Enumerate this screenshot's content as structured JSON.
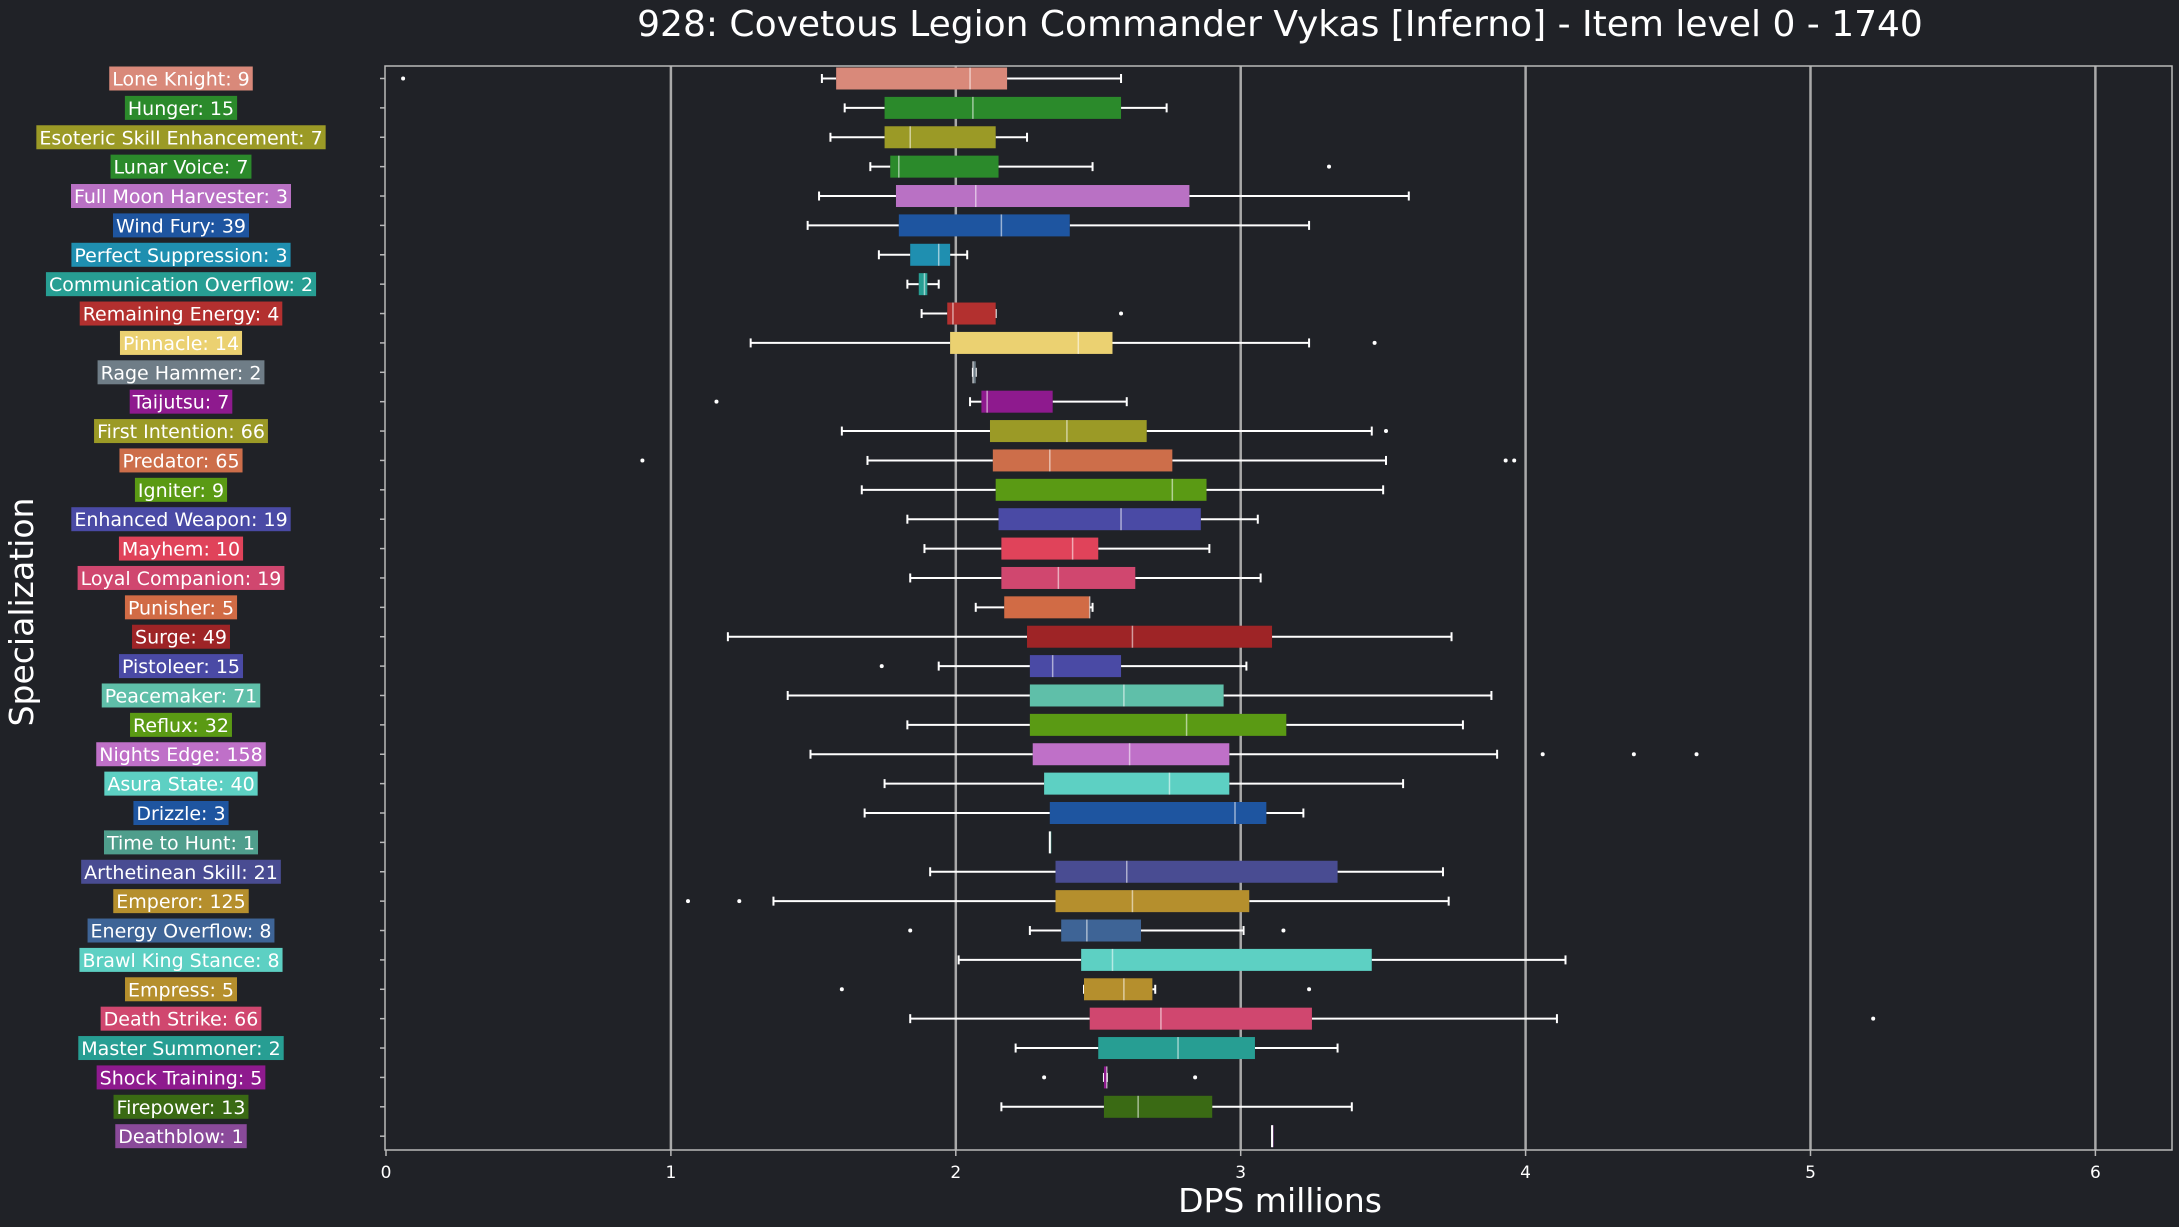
{
  "chart_data": {
    "type": "box",
    "title": "928: Covetous Legion Commander Vykas [Inferno] - Item level 0 - 1740",
    "xlabel": "DPS millions",
    "ylabel": "Specialization",
    "xlim": [
      0,
      6.3
    ],
    "xticks": [
      0,
      1,
      2,
      3,
      4,
      5,
      6
    ],
    "grid": true,
    "orientation": "horizontal",
    "series": [
      {
        "label": "Lone Knight: 9",
        "color": "#d9897a",
        "whisker_low": 1.53,
        "q1": 1.58,
        "median": 2.05,
        "q3": 2.18,
        "whisker_high": 2.58,
        "outliers": [
          0.06
        ]
      },
      {
        "label": "Hunger: 15",
        "color": "#2b8a2b",
        "whisker_low": 1.61,
        "q1": 1.75,
        "median": 2.06,
        "q3": 2.58,
        "whisker_high": 2.74,
        "outliers": []
      },
      {
        "label": "Esoteric Skill Enhancement: 7",
        "color": "#9b9a26",
        "whisker_low": 1.56,
        "q1": 1.75,
        "median": 1.84,
        "q3": 2.14,
        "whisker_high": 2.25,
        "outliers": []
      },
      {
        "label": "Lunar Voice: 7",
        "color": "#2b8a2b",
        "whisker_low": 1.7,
        "q1": 1.77,
        "median": 1.8,
        "q3": 2.15,
        "whisker_high": 2.48,
        "outliers": [
          3.31
        ]
      },
      {
        "label": "Full Moon Harvester: 3",
        "color": "#b971c4",
        "whisker_low": 1.52,
        "q1": 1.79,
        "median": 2.07,
        "q3": 2.82,
        "whisker_high": 3.59,
        "outliers": []
      },
      {
        "label": "Wind Fury: 39",
        "color": "#1e55a0",
        "whisker_low": 1.48,
        "q1": 1.8,
        "median": 2.16,
        "q3": 2.4,
        "whisker_high": 3.24,
        "outliers": []
      },
      {
        "label": "Perfect Suppression: 3",
        "color": "#1f8fb0",
        "whisker_low": 1.73,
        "q1": 1.84,
        "median": 1.94,
        "q3": 1.98,
        "whisker_high": 2.04,
        "outliers": []
      },
      {
        "label": "Communication Overflow: 2",
        "color": "#279e93",
        "whisker_low": 1.83,
        "q1": 1.87,
        "median": 1.89,
        "q3": 1.9,
        "whisker_high": 1.94,
        "outliers": []
      },
      {
        "label": "Remaining Energy: 4",
        "color": "#b3302f",
        "whisker_low": 1.88,
        "q1": 1.97,
        "median": 1.99,
        "q3": 2.14,
        "whisker_high": 2.14,
        "outliers": [
          2.58
        ]
      },
      {
        "label": "Pinnacle: 14",
        "color": "#ebd171",
        "whisker_low": 1.28,
        "q1": 1.98,
        "median": 2.43,
        "q3": 2.55,
        "whisker_high": 3.24,
        "outliers": [
          3.47
        ]
      },
      {
        "label": "Rage Hammer: 2",
        "color": "#6f7d87",
        "whisker_low": 2.06,
        "q1": 2.06,
        "median": 2.06,
        "q3": 2.07,
        "whisker_high": 2.07,
        "outliers": []
      },
      {
        "label": "Taijutsu: 7",
        "color": "#8e1a8e",
        "whisker_low": 2.05,
        "q1": 2.09,
        "median": 2.11,
        "q3": 2.34,
        "whisker_high": 2.6,
        "outliers": [
          1.16
        ]
      },
      {
        "label": "First Intention: 66",
        "color": "#9b9a26",
        "whisker_low": 1.6,
        "q1": 2.12,
        "median": 2.39,
        "q3": 2.67,
        "whisker_high": 3.46,
        "outliers": [
          3.51
        ]
      },
      {
        "label": "Predator: 65",
        "color": "#cd6e4a",
        "whisker_low": 1.69,
        "q1": 2.13,
        "median": 2.33,
        "q3": 2.76,
        "whisker_high": 3.51,
        "outliers": [
          0.9,
          3.93,
          3.96
        ]
      },
      {
        "label": "Igniter: 9",
        "color": "#5a9a14",
        "whisker_low": 1.67,
        "q1": 2.14,
        "median": 2.76,
        "q3": 2.88,
        "whisker_high": 3.5,
        "outliers": []
      },
      {
        "label": "Enhanced Weapon: 19",
        "color": "#4a4aa5",
        "whisker_low": 1.83,
        "q1": 2.15,
        "median": 2.58,
        "q3": 2.86,
        "whisker_high": 3.06,
        "outliers": []
      },
      {
        "label": "Mayhem: 10",
        "color": "#e0435a",
        "whisker_low": 1.89,
        "q1": 2.16,
        "median": 2.41,
        "q3": 2.5,
        "whisker_high": 2.89,
        "outliers": []
      },
      {
        "label": "Loyal Companion: 19",
        "color": "#d0476f",
        "whisker_low": 1.84,
        "q1": 2.16,
        "median": 2.36,
        "q3": 2.63,
        "whisker_high": 3.07,
        "outliers": []
      },
      {
        "label": "Punisher: 5",
        "color": "#d16b45",
        "whisker_low": 2.07,
        "q1": 2.17,
        "median": 2.47,
        "q3": 2.47,
        "whisker_high": 2.48,
        "outliers": []
      },
      {
        "label": "Surge: 49",
        "color": "#9e2426",
        "whisker_low": 1.2,
        "q1": 2.25,
        "median": 2.62,
        "q3": 3.11,
        "whisker_high": 3.74,
        "outliers": []
      },
      {
        "label": "Pistoleer: 15",
        "color": "#4a4aa5",
        "whisker_low": 1.94,
        "q1": 2.26,
        "median": 2.34,
        "q3": 2.58,
        "whisker_high": 3.02,
        "outliers": [
          1.74
        ]
      },
      {
        "label": "Peacemaker: 71",
        "color": "#5fbfa9",
        "whisker_low": 1.41,
        "q1": 2.26,
        "median": 2.59,
        "q3": 2.94,
        "whisker_high": 3.88,
        "outliers": []
      },
      {
        "label": "Reflux: 32",
        "color": "#5a9a14",
        "whisker_low": 1.83,
        "q1": 2.26,
        "median": 2.81,
        "q3": 3.16,
        "whisker_high": 3.78,
        "outliers": []
      },
      {
        "label": "Nights Edge: 158",
        "color": "#bf70c8",
        "whisker_low": 1.49,
        "q1": 2.27,
        "median": 2.61,
        "q3": 2.96,
        "whisker_high": 3.9,
        "outliers": [
          4.06,
          4.38,
          4.6
        ]
      },
      {
        "label": "Asura State: 40",
        "color": "#5dd0c3",
        "whisker_low": 1.75,
        "q1": 2.31,
        "median": 2.75,
        "q3": 2.96,
        "whisker_high": 3.57,
        "outliers": []
      },
      {
        "label": "Drizzle: 3",
        "color": "#1e55a0",
        "whisker_low": 1.68,
        "q1": 2.33,
        "median": 2.98,
        "q3": 3.09,
        "whisker_high": 3.22,
        "outliers": []
      },
      {
        "label": "Time to Hunt: 1",
        "color": "#4f9e8c",
        "whisker_low": 2.33,
        "q1": 2.33,
        "median": 2.33,
        "q3": 2.33,
        "whisker_high": 2.33,
        "outliers": []
      },
      {
        "label": "Arthetinean Skill: 21",
        "color": "#494c92",
        "whisker_low": 1.91,
        "q1": 2.35,
        "median": 2.6,
        "q3": 3.34,
        "whisker_high": 3.71,
        "outliers": []
      },
      {
        "label": "Emperor: 125",
        "color": "#b58f2d",
        "whisker_low": 1.36,
        "q1": 2.35,
        "median": 2.62,
        "q3": 3.03,
        "whisker_high": 3.73,
        "outliers": [
          1.06,
          1.24
        ]
      },
      {
        "label": "Energy Overflow: 8",
        "color": "#3e6496",
        "whisker_low": 2.26,
        "q1": 2.37,
        "median": 2.46,
        "q3": 2.65,
        "whisker_high": 3.01,
        "outliers": [
          1.84,
          3.15
        ]
      },
      {
        "label": "Brawl King Stance: 8",
        "color": "#5dd0c3",
        "whisker_low": 2.01,
        "q1": 2.44,
        "median": 2.55,
        "q3": 3.46,
        "whisker_high": 4.14,
        "outliers": []
      },
      {
        "label": "Empress: 5",
        "color": "#b58f2d",
        "whisker_low": 2.45,
        "q1": 2.45,
        "median": 2.59,
        "q3": 2.69,
        "whisker_high": 2.7,
        "outliers": [
          1.6,
          3.24
        ]
      },
      {
        "label": "Death Strike: 66",
        "color": "#d0476f",
        "whisker_low": 1.84,
        "q1": 2.47,
        "median": 2.72,
        "q3": 3.25,
        "whisker_high": 4.11,
        "outliers": [
          5.22
        ]
      },
      {
        "label": "Master Summoner: 2",
        "color": "#279e93",
        "whisker_low": 2.21,
        "q1": 2.5,
        "median": 2.78,
        "q3": 3.05,
        "whisker_high": 3.34,
        "outliers": []
      },
      {
        "label": "Shock Training: 5",
        "color": "#8e1a8e",
        "whisker_low": 2.52,
        "q1": 2.52,
        "median": 2.53,
        "q3": 2.53,
        "whisker_high": 2.53,
        "outliers": [
          2.31,
          2.84
        ]
      },
      {
        "label": "Firepower: 13",
        "color": "#3a6a14",
        "whisker_low": 2.16,
        "q1": 2.52,
        "median": 2.64,
        "q3": 2.9,
        "whisker_high": 3.39,
        "outliers": []
      },
      {
        "label": "Deathblow: 1",
        "color": "#8a4a9a",
        "whisker_low": 3.11,
        "q1": 3.11,
        "median": 3.11,
        "q3": 3.11,
        "whisker_high": 3.11,
        "outliers": []
      }
    ]
  }
}
